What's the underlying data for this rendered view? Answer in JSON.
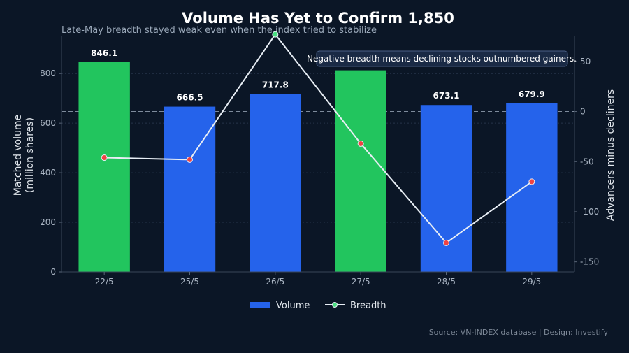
{
  "chart_data": {
    "type": "bar",
    "title": "Volume Has Yet to Confirm 1,850",
    "subtitle": "Late-May breadth stayed weak even when the index tried to stabilize",
    "categories": [
      "22/5",
      "25/5",
      "26/5",
      "27/5",
      "28/5",
      "29/5"
    ],
    "ylabel_left": [
      "Matched volume",
      "(million shares)"
    ],
    "ylabel_right": "Advancers minus decliners",
    "ylim_left": [
      0,
      950
    ],
    "ylim_right": [
      -160,
      75
    ],
    "yticks_left": [
      0,
      200,
      400,
      600,
      800
    ],
    "yticks_right": [
      50,
      0,
      -50,
      -100,
      -150
    ],
    "series": [
      {
        "name": "Volume",
        "type": "bar",
        "axis": "left",
        "values": [
          846.1,
          666.5,
          717.8,
          813,
          673.1,
          679.9
        ],
        "data_labels": [
          "846.1",
          "666.5",
          "717.8",
          "",
          "673.1",
          "679.9"
        ],
        "bar_colors": [
          "#22c55e",
          "#2563eb",
          "#2563eb",
          "#22c55e",
          "#2563eb",
          "#2563eb"
        ]
      },
      {
        "name": "Breadth",
        "type": "line",
        "axis": "right",
        "values": [
          -46,
          -48,
          77,
          -32,
          -131,
          -70
        ],
        "line_color": "#e8eef5"
      }
    ],
    "reference_line": {
      "axis": "right",
      "value": 0
    },
    "annotation": "Negative breadth means declining stocks outnumbered gainers.",
    "legend": {
      "position": "bottom-center",
      "items": [
        {
          "label": "Volume",
          "color": "#2563eb",
          "marker": "bar"
        },
        {
          "label": "Breadth",
          "color": "#e8eef5",
          "marker": "line-point"
        }
      ]
    },
    "grid": true,
    "colors": {
      "positive": "#22c55e",
      "negative": "#2563eb",
      "breadth_point_positive": "#4ade80",
      "breadth_point_negative": "#ef4444"
    }
  },
  "source": "Source: VN-INDEX database | Design: Investify"
}
